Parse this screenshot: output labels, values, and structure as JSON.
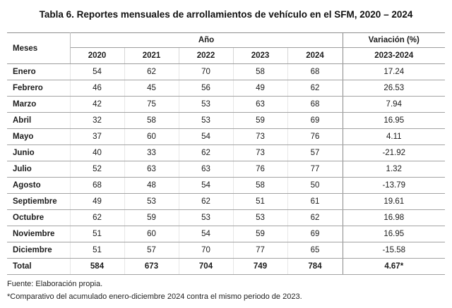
{
  "title": "Tabla 6. Reportes mensuales de arrollamientos de vehículo en el SFM, 2020 – 2024",
  "table": {
    "header": {
      "meses": "Meses",
      "ano": "Año",
      "years": [
        "2020",
        "2021",
        "2022",
        "2023",
        "2024"
      ],
      "variacion": "Variación (%)",
      "variacion_range": "2023-2024"
    },
    "rows": [
      {
        "month": "Enero",
        "values": [
          54,
          62,
          70,
          58,
          68
        ],
        "variation": "17.24"
      },
      {
        "month": "Febrero",
        "values": [
          46,
          45,
          56,
          49,
          62
        ],
        "variation": "26.53"
      },
      {
        "month": "Marzo",
        "values": [
          42,
          75,
          53,
          63,
          68
        ],
        "variation": "7.94"
      },
      {
        "month": "Abril",
        "values": [
          32,
          58,
          53,
          59,
          69
        ],
        "variation": "16.95"
      },
      {
        "month": "Mayo",
        "values": [
          37,
          60,
          54,
          73,
          76
        ],
        "variation": "4.11"
      },
      {
        "month": "Junio",
        "values": [
          40,
          33,
          62,
          73,
          57
        ],
        "variation": "-21.92"
      },
      {
        "month": "Julio",
        "values": [
          52,
          63,
          63,
          76,
          77
        ],
        "variation": "1.32"
      },
      {
        "month": "Agosto",
        "values": [
          68,
          48,
          54,
          58,
          50
        ],
        "variation": "-13.79"
      },
      {
        "month": "Septiembre",
        "values": [
          49,
          53,
          62,
          51,
          61
        ],
        "variation": "19.61"
      },
      {
        "month": "Octubre",
        "values": [
          62,
          59,
          53,
          53,
          62
        ],
        "variation": "16.98"
      },
      {
        "month": "Noviembre",
        "values": [
          51,
          60,
          54,
          59,
          69
        ],
        "variation": "16.95"
      },
      {
        "month": "Diciembre",
        "values": [
          51,
          57,
          70,
          77,
          65
        ],
        "variation": "-15.58"
      },
      {
        "month": "Total",
        "values": [
          584,
          673,
          704,
          749,
          784
        ],
        "variation": "4.67*",
        "is_total": true
      }
    ]
  },
  "footer": {
    "source": "Fuente: Elaboración propia.",
    "note": "*Comparativo del acumulado enero-diciembre 2024 contra el mismo periodo de 2023."
  },
  "colors": {
    "text": "#1c1c1c",
    "border_strong": "#8f8f8f",
    "border_row": "#a3a3a3",
    "border_light": "#d6d6d6"
  }
}
